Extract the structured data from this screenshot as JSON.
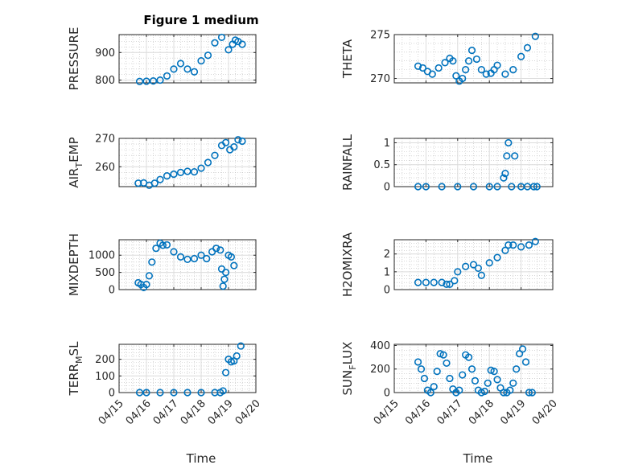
{
  "figure": {
    "title": "Figure 1 medium",
    "xlabel": "Time",
    "x_ticks": [
      "04/15",
      "04/16",
      "04/17",
      "04/18",
      "04/19",
      "04/20"
    ],
    "x_range": [
      "04/15",
      "04/20"
    ],
    "marker": "open-circle",
    "marker_color": "#0072BD",
    "grid": true,
    "minor_grid": true
  },
  "chart_data": [
    {
      "type": "scatter",
      "ylabel": "PRESSURE",
      "ylim": [
        790,
        965
      ],
      "yticks": [
        800,
        900
      ],
      "ytick_labels": [
        "800",
        "900"
      ],
      "x": [
        0.75,
        1.0,
        1.25,
        1.5,
        1.75,
        2.0,
        2.25,
        2.5,
        2.75,
        3.0,
        3.25,
        3.5,
        3.75,
        4.0,
        4.15,
        4.25,
        4.35,
        4.5
      ],
      "values": [
        795,
        796,
        797,
        800,
        815,
        840,
        860,
        840,
        830,
        870,
        890,
        935,
        955,
        910,
        930,
        945,
        940,
        930
      ]
    },
    {
      "type": "scatter",
      "ylabel": "THETA",
      "ylim": [
        269.5,
        275
      ],
      "yticks": [
        270,
        275
      ],
      "ytick_labels": [
        "270",
        "275"
      ],
      "x": [
        0.75,
        0.9,
        1.05,
        1.2,
        1.4,
        1.6,
        1.75,
        1.85,
        1.95,
        2.05,
        2.15,
        2.25,
        2.35,
        2.45,
        2.6,
        2.75,
        2.9,
        3.05,
        3.15,
        3.25,
        3.5,
        3.75,
        4.0,
        4.2,
        4.45
      ],
      "values": [
        271.4,
        271.2,
        270.8,
        270.5,
        271.2,
        271.8,
        272.3,
        272.0,
        270.3,
        269.7,
        270.0,
        271.0,
        272.0,
        273.2,
        272.2,
        271.0,
        270.5,
        270.6,
        271.0,
        271.5,
        270.5,
        271.0,
        272.5,
        273.5,
        274.8
      ]
    },
    {
      "type": "scatter",
      "ylabel": "AIR_TEMP",
      "ylim": [
        253,
        270
      ],
      "yticks": [
        260,
        270
      ],
      "ytick_labels": [
        "260",
        "270"
      ],
      "x": [
        0.7,
        0.9,
        1.1,
        1.3,
        1.5,
        1.75,
        2.0,
        2.25,
        2.5,
        2.75,
        3.0,
        3.25,
        3.5,
        3.75,
        3.9,
        4.05,
        4.2,
        4.35,
        4.5
      ],
      "values": [
        254.2,
        254.3,
        253.5,
        254.2,
        255.5,
        256.8,
        257.4,
        258.0,
        258.4,
        258.2,
        259.5,
        261.5,
        264.0,
        267.5,
        268.5,
        266.0,
        267.0,
        269.5,
        269.0
      ]
    },
    {
      "type": "scatter",
      "ylabel": "RAINFALL",
      "ylim": [
        0,
        1.1
      ],
      "yticks": [
        0,
        0.5,
        1
      ],
      "ytick_labels": [
        "0",
        "0.5",
        "1"
      ],
      "x": [
        0.75,
        1.0,
        1.5,
        2.0,
        2.5,
        3.0,
        3.25,
        3.45,
        3.5,
        3.55,
        3.6,
        3.7,
        3.8,
        4.0,
        4.2,
        4.4,
        4.5
      ],
      "values": [
        0,
        0,
        0,
        0,
        0,
        0,
        0,
        0.2,
        0.3,
        0.7,
        1.0,
        0,
        0.7,
        0,
        0,
        0,
        0
      ]
    },
    {
      "type": "scatter",
      "ylabel": "MIXDEPTH",
      "ylim": [
        0,
        1450
      ],
      "yticks": [
        0,
        500,
        1000
      ],
      "ytick_labels": [
        "0",
        "500",
        "1000"
      ],
      "x": [
        0.7,
        0.8,
        0.9,
        1.0,
        1.1,
        1.2,
        1.35,
        1.5,
        1.6,
        1.75,
        2.0,
        2.25,
        2.5,
        2.75,
        3.0,
        3.2,
        3.4,
        3.55,
        3.7,
        3.75,
        3.8,
        3.85,
        3.9,
        4.0,
        4.1,
        4.2
      ],
      "values": [
        200,
        150,
        60,
        150,
        400,
        800,
        1200,
        1350,
        1290,
        1300,
        1100,
        950,
        880,
        900,
        1000,
        900,
        1100,
        1200,
        1150,
        600,
        100,
        300,
        500,
        1000,
        950,
        700
      ]
    },
    {
      "type": "scatter",
      "ylabel": "H2OMIXRA",
      "ylim": [
        0,
        2.8
      ],
      "yticks": [
        0,
        1,
        2
      ],
      "ytick_labels": [
        "0",
        "1",
        "2"
      ],
      "x": [
        0.75,
        1.0,
        1.25,
        1.5,
        1.65,
        1.75,
        1.9,
        2.0,
        2.25,
        2.5,
        2.65,
        2.75,
        3.0,
        3.25,
        3.5,
        3.6,
        3.75,
        4.0,
        4.25,
        4.45
      ],
      "values": [
        0.4,
        0.4,
        0.4,
        0.4,
        0.3,
        0.3,
        0.5,
        1.0,
        1.3,
        1.4,
        1.2,
        0.8,
        1.5,
        1.8,
        2.2,
        2.5,
        2.5,
        2.4,
        2.5,
        2.7
      ]
    },
    {
      "type": "scatter",
      "ylabel": "TERR_MSL",
      "ylim": [
        0,
        290
      ],
      "yticks": [
        0,
        100,
        200
      ],
      "ytick_labels": [
        "0",
        "100",
        "200"
      ],
      "x": [
        0.75,
        1.0,
        1.5,
        2.0,
        2.5,
        3.0,
        3.5,
        3.7,
        3.8,
        3.9,
        4.0,
        4.1,
        4.2,
        4.3,
        4.45
      ],
      "values": [
        0,
        0,
        0,
        0,
        0,
        0,
        0,
        0,
        10,
        120,
        200,
        185,
        190,
        220,
        280
      ]
    },
    {
      "type": "scatter",
      "ylabel": "SUN_FLUX",
      "ylim": [
        0,
        410
      ],
      "yticks": [
        0,
        200,
        400
      ],
      "ytick_labels": [
        "0",
        "200",
        "400"
      ],
      "x": [
        0.75,
        0.85,
        0.95,
        1.05,
        1.15,
        1.25,
        1.35,
        1.45,
        1.55,
        1.65,
        1.75,
        1.85,
        1.95,
        2.05,
        2.15,
        2.25,
        2.35,
        2.45,
        2.55,
        2.65,
        2.75,
        2.85,
        2.95,
        3.05,
        3.15,
        3.25,
        3.35,
        3.45,
        3.55,
        3.65,
        3.75,
        3.85,
        3.95,
        4.05,
        4.15,
        4.25,
        4.35
      ],
      "values": [
        260,
        200,
        120,
        20,
        0,
        50,
        180,
        330,
        320,
        250,
        120,
        30,
        0,
        20,
        150,
        320,
        300,
        200,
        100,
        20,
        0,
        10,
        80,
        190,
        180,
        110,
        40,
        0,
        0,
        20,
        80,
        200,
        330,
        370,
        260,
        0,
        0
      ]
    }
  ]
}
